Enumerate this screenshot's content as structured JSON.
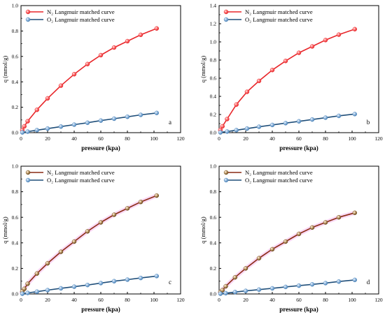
{
  "colors": {
    "axis": "#000000",
    "n2_red": "#e8262a",
    "n2_brown": "#8a2a14",
    "n2_marker_dark": "#6b4a1a",
    "o2_line": "#1f4e79",
    "o2_marker": "#4d84b8",
    "highlight_pink": "#f2a9e6"
  },
  "chart_data": [
    {
      "panel": "a",
      "type": "line",
      "xlabel": "pressure (kpa)",
      "ylabel": "q (mmol/g)",
      "xlim": [
        0,
        120
      ],
      "ylim": [
        0,
        1.0
      ],
      "xticks": [
        "0",
        "20",
        "40",
        "60",
        "80",
        "100",
        "120"
      ],
      "yticks": [
        "0.0",
        "0.2",
        "0.4",
        "0.6",
        "0.8",
        "1.0"
      ],
      "legend": "top-left",
      "series": [
        {
          "name": "N₂  Langmuir matched curve",
          "style": "red",
          "x": [
            1,
            2.5,
            5,
            12,
            20,
            30,
            40,
            50,
            60,
            70,
            80,
            90,
            102
          ],
          "y": [
            0.02,
            0.05,
            0.09,
            0.18,
            0.27,
            0.37,
            0.46,
            0.54,
            0.61,
            0.67,
            0.72,
            0.77,
            0.82
          ]
        },
        {
          "name": "O₂  Langmuir matched curve",
          "style": "o2",
          "x": [
            1,
            5,
            12,
            20,
            30,
            40,
            50,
            60,
            70,
            80,
            90,
            102
          ],
          "y": [
            0.002,
            0.008,
            0.02,
            0.032,
            0.048,
            0.063,
            0.078,
            0.095,
            0.11,
            0.125,
            0.14,
            0.155
          ]
        }
      ]
    },
    {
      "panel": "b",
      "type": "line",
      "xlabel": "pressure (kpa)",
      "ylabel": "q (mmol/g)",
      "xlim": [
        0,
        120
      ],
      "ylim": [
        0,
        1.4
      ],
      "xticks": [
        "0",
        "20",
        "40",
        "60",
        "80",
        "100",
        "120"
      ],
      "yticks": [
        "0.0",
        "0.2",
        "0.4",
        "0.6",
        "0.8",
        "1.0",
        "1.2",
        "1.4"
      ],
      "legend": "top-left",
      "series": [
        {
          "name": "N₂  Langmuir matched curve",
          "style": "red",
          "x": [
            1,
            2.5,
            6,
            13,
            21,
            30,
            40,
            50,
            60,
            70,
            80,
            90,
            102
          ],
          "y": [
            0.03,
            0.07,
            0.15,
            0.31,
            0.45,
            0.57,
            0.69,
            0.79,
            0.88,
            0.95,
            1.02,
            1.08,
            1.14
          ]
        },
        {
          "name": "O₂  Langmuir matched curve",
          "style": "o2",
          "x": [
            1,
            6,
            13,
            21,
            30,
            40,
            50,
            60,
            70,
            80,
            90,
            102
          ],
          "y": [
            0.003,
            0.012,
            0.028,
            0.045,
            0.065,
            0.085,
            0.105,
            0.125,
            0.145,
            0.165,
            0.185,
            0.205
          ]
        }
      ]
    },
    {
      "panel": "c",
      "type": "line",
      "xlabel": "pressure (kpa)",
      "ylabel": "q (mmol/g)",
      "xlim": [
        0,
        120
      ],
      "ylim": [
        0,
        1.0
      ],
      "xticks": [
        "0",
        "20",
        "40",
        "60",
        "80",
        "100",
        "120"
      ],
      "yticks": [
        "0.0",
        "0.2",
        "0.4",
        "0.6",
        "0.8",
        "1.0"
      ],
      "legend": "top-left",
      "series": [
        {
          "name": "N₂  Langmuir matched curve",
          "style": "brown",
          "x": [
            1,
            2.5,
            5,
            12,
            20,
            30,
            40,
            50,
            60,
            70,
            80,
            90,
            102
          ],
          "y": [
            0.02,
            0.04,
            0.08,
            0.16,
            0.24,
            0.33,
            0.41,
            0.49,
            0.56,
            0.62,
            0.67,
            0.72,
            0.77
          ]
        },
        {
          "name": "O₂  Langmuir matched curve",
          "style": "o2",
          "x": [
            1,
            5,
            12,
            20,
            30,
            40,
            50,
            60,
            70,
            80,
            90,
            102
          ],
          "y": [
            0.002,
            0.008,
            0.018,
            0.03,
            0.044,
            0.057,
            0.07,
            0.085,
            0.1,
            0.112,
            0.125,
            0.14
          ]
        }
      ]
    },
    {
      "panel": "d",
      "type": "line",
      "xlabel": "pressure (kpa)",
      "ylabel": "q (mmol/g)",
      "xlim": [
        0,
        120
      ],
      "ylim": [
        0,
        1.0
      ],
      "xticks": [
        "0",
        "20",
        "40",
        "60",
        "80",
        "100",
        "120"
      ],
      "yticks": [
        "0.0",
        "0.2",
        "0.4",
        "0.6",
        "0.8",
        "1.0"
      ],
      "legend": "top-left",
      "series": [
        {
          "name": "N₂  Langmuir matched curve",
          "style": "brown",
          "x": [
            1,
            2.5,
            5,
            12,
            20,
            30,
            40,
            50,
            60,
            70,
            80,
            90,
            102
          ],
          "y": [
            0.015,
            0.03,
            0.06,
            0.13,
            0.2,
            0.28,
            0.35,
            0.41,
            0.47,
            0.52,
            0.56,
            0.6,
            0.635
          ]
        },
        {
          "name": "O₂  Langmuir matched curve",
          "style": "o2",
          "x": [
            1,
            5,
            12,
            20,
            30,
            40,
            50,
            60,
            70,
            80,
            90,
            102
          ],
          "y": [
            0.002,
            0.006,
            0.015,
            0.024,
            0.034,
            0.044,
            0.055,
            0.065,
            0.075,
            0.085,
            0.097,
            0.11
          ]
        }
      ]
    }
  ]
}
